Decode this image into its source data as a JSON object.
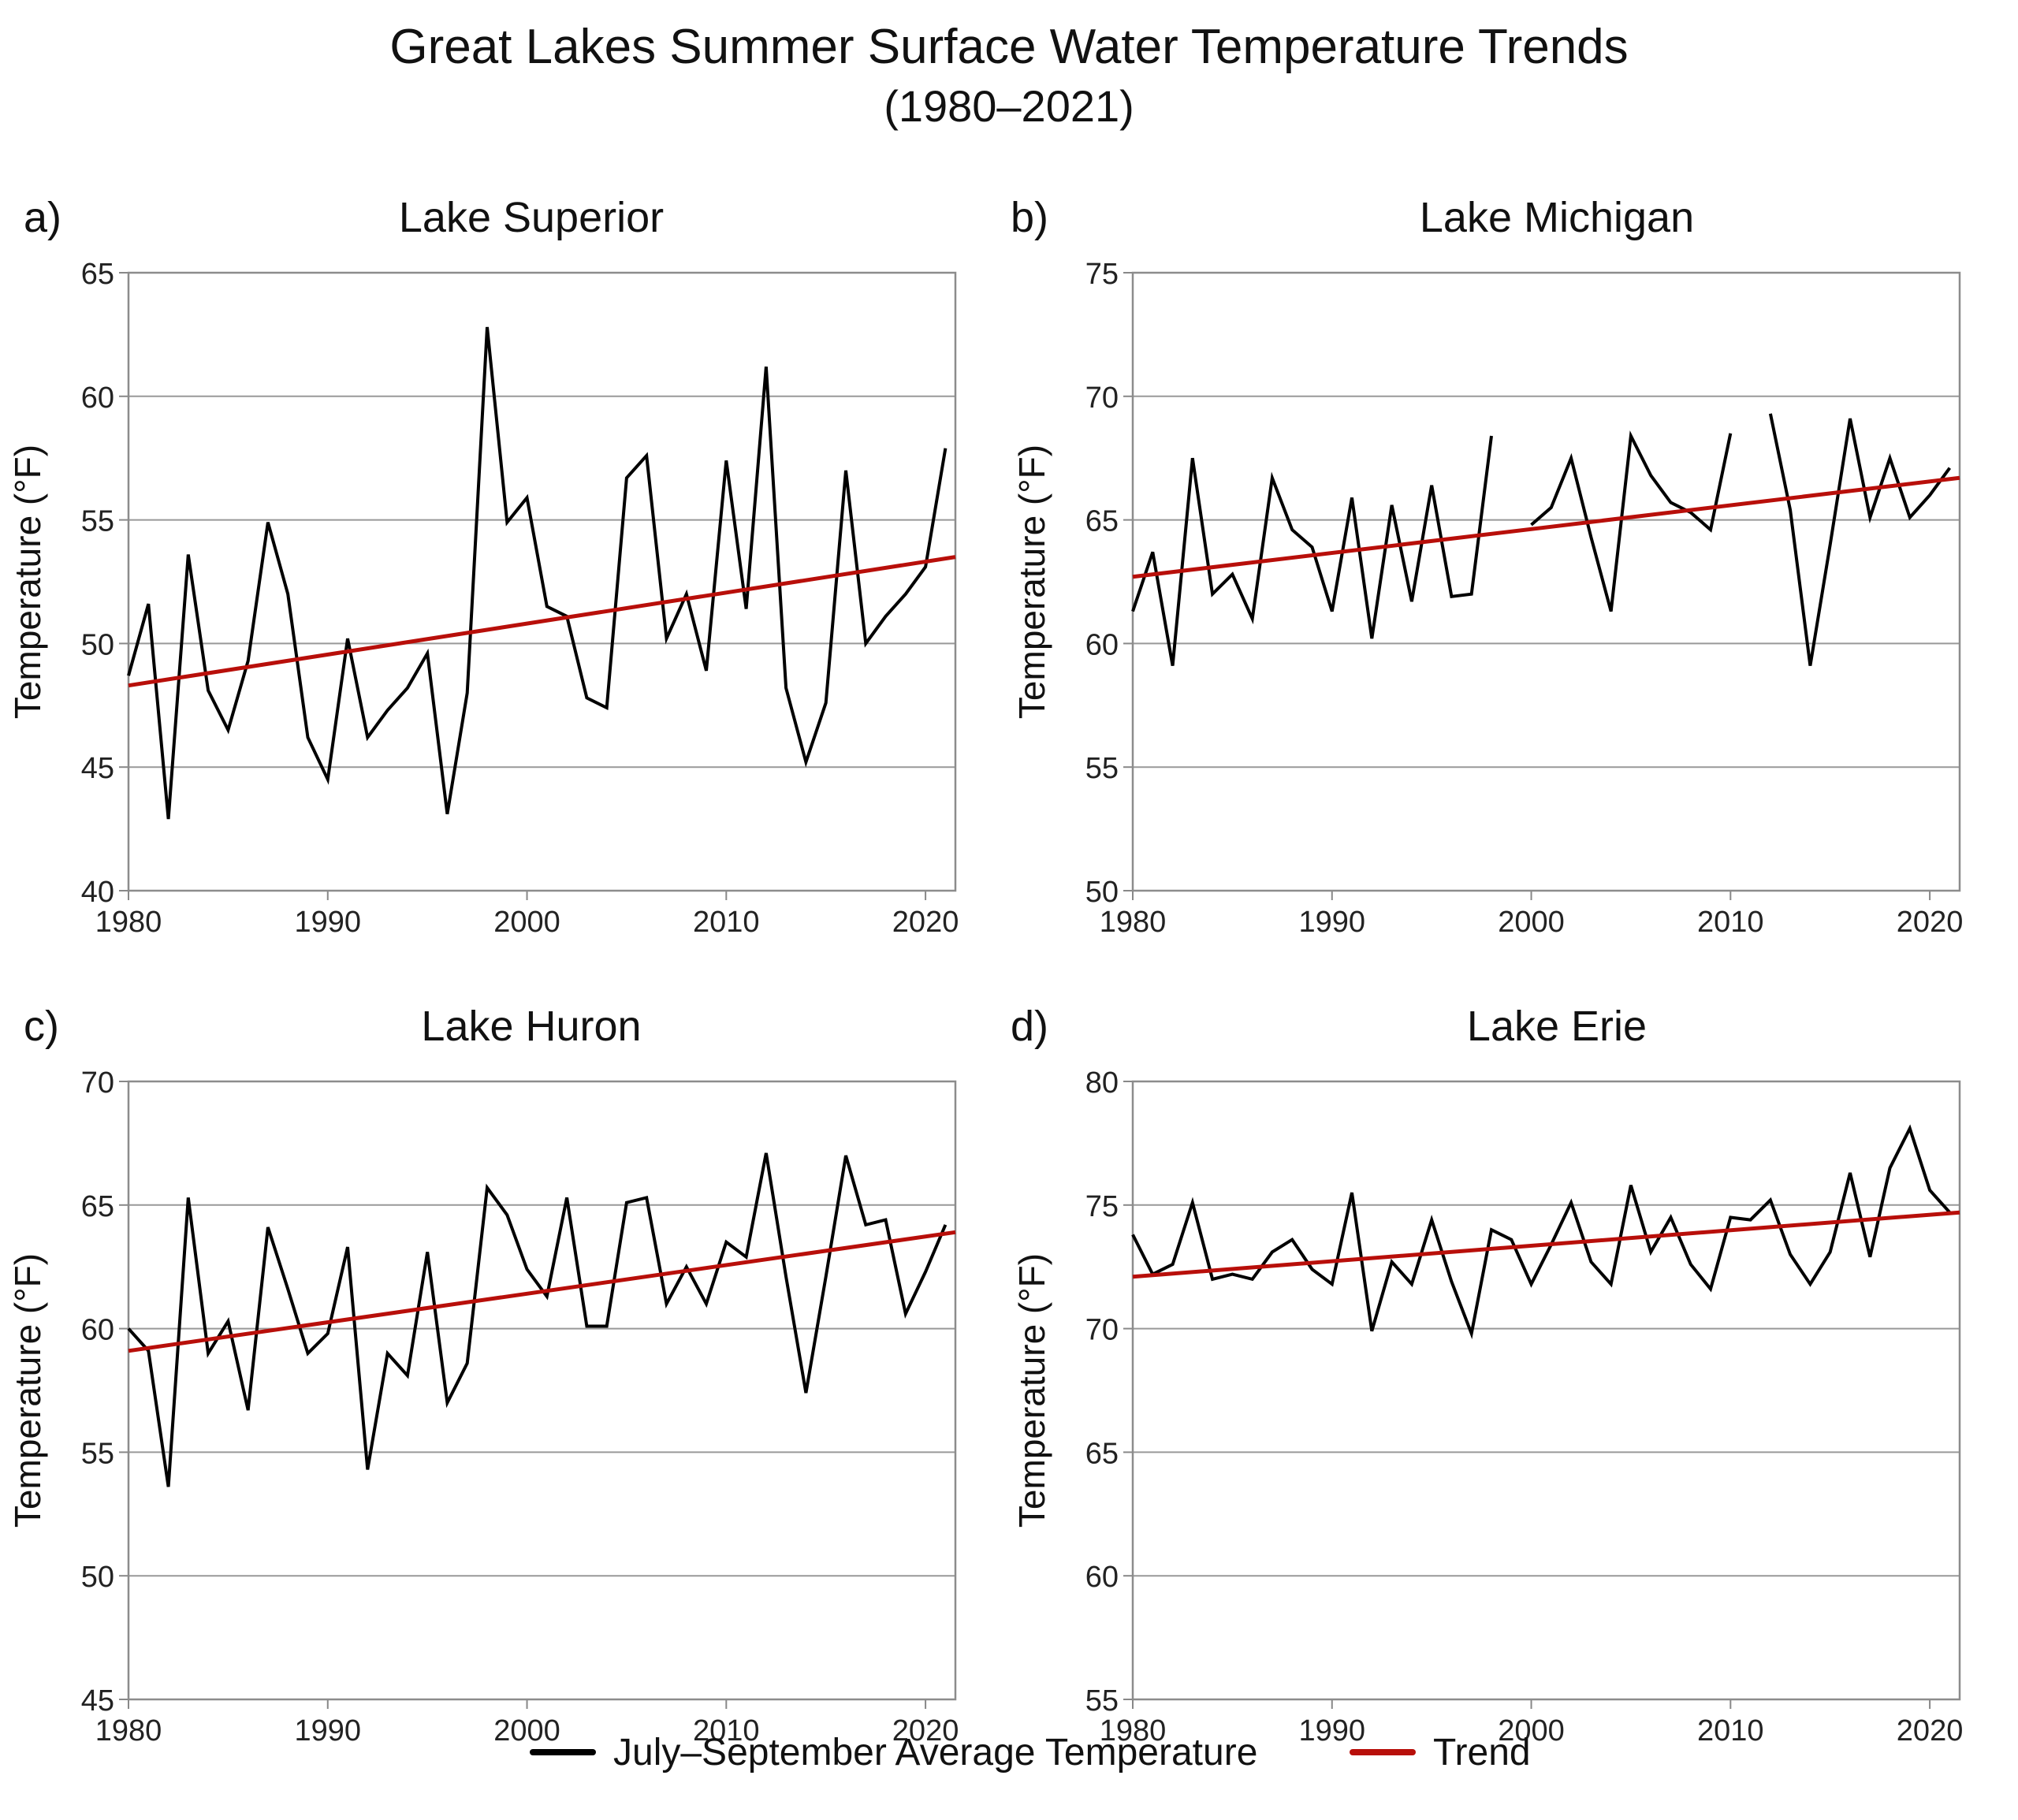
{
  "title": "Great Lakes Summer Surface Water Temperature Trends",
  "subtitle": "(1980–2021)",
  "legend": {
    "observed_label": "July–September Average Temperature",
    "trend_label": "Trend",
    "observed_color": "#000000",
    "trend_color": "#b80f0a"
  },
  "chart_data": [
    {
      "type": "line",
      "panel_label": "a)",
      "title": "Lake Superior",
      "ylabel": "Temperature (°F)",
      "xlabel": "",
      "xlim": [
        1980,
        2021.5
      ],
      "ylim": [
        40,
        65
      ],
      "xticks": [
        1980,
        1990,
        2000,
        2010,
        2020
      ],
      "yticks": [
        40,
        45,
        50,
        55,
        60,
        65
      ],
      "grid": true,
      "series": [
        {
          "name": "July–September Average Temperature",
          "x": [
            1980,
            1981,
            1982,
            1983,
            1984,
            1985,
            1986,
            1987,
            1988,
            1989,
            1990,
            1991,
            1992,
            1993,
            1994,
            1995,
            1996,
            1997,
            1998,
            1999,
            2000,
            2001,
            2002,
            2003,
            2004,
            2005,
            2006,
            2007,
            2008,
            2009,
            2010,
            2011,
            2012,
            2013,
            2014,
            2015,
            2016,
            2017,
            2018,
            2019,
            2020,
            2021
          ],
          "values": [
            48.7,
            51.6,
            42.9,
            53.6,
            48.1,
            46.5,
            49.3,
            54.9,
            52.0,
            46.2,
            44.5,
            50.2,
            46.2,
            47.3,
            48.2,
            49.6,
            43.1,
            48.0,
            62.8,
            54.9,
            55.9,
            51.5,
            51.1,
            47.8,
            47.4,
            56.7,
            57.6,
            50.2,
            52.0,
            48.9,
            57.4,
            51.4,
            61.2,
            48.2,
            45.2,
            47.6,
            57.0,
            50.0,
            51.1,
            52.0,
            53.1,
            57.9
          ]
        },
        {
          "name": "Trend",
          "x": [
            1980,
            2021.5
          ],
          "values": [
            48.3,
            53.5
          ]
        }
      ]
    },
    {
      "type": "line",
      "panel_label": "b)",
      "title": "Lake Michigan",
      "ylabel": "Temperature (°F)",
      "xlabel": "",
      "xlim": [
        1980,
        2021.5
      ],
      "ylim": [
        50,
        75
      ],
      "xticks": [
        1980,
        1990,
        2000,
        2010,
        2020
      ],
      "yticks": [
        50,
        55,
        60,
        65,
        70,
        75
      ],
      "grid": true,
      "series": [
        {
          "name": "July–September Average Temperature",
          "x": [
            1980,
            1981,
            1982,
            1983,
            1984,
            1985,
            1986,
            1987,
            1988,
            1989,
            1990,
            1991,
            1992,
            1993,
            1994,
            1995,
            1996,
            1997,
            1998,
            1999,
            2000,
            2001,
            2002,
            2003,
            2004,
            2005,
            2006,
            2007,
            2008,
            2009,
            2010,
            2011,
            2012,
            2013,
            2014,
            2015,
            2016,
            2017,
            2018,
            2019,
            2020,
            2021
          ],
          "values": [
            61.3,
            63.7,
            59.1,
            67.5,
            62.0,
            62.8,
            61.0,
            66.7,
            64.6,
            63.9,
            61.3,
            65.9,
            60.2,
            65.6,
            61.7,
            66.4,
            61.9,
            62.0,
            68.4,
            null,
            64.8,
            65.5,
            67.5,
            64.3,
            61.3,
            68.4,
            66.8,
            65.7,
            65.3,
            64.6,
            68.5,
            null,
            69.3,
            65.4,
            59.1,
            64.0,
            69.1,
            65.1,
            67.5,
            65.1,
            66.0,
            67.1
          ]
        },
        {
          "name": "Trend",
          "x": [
            1980,
            2021.5
          ],
          "values": [
            62.7,
            66.7
          ]
        }
      ]
    },
    {
      "type": "line",
      "panel_label": "c)",
      "title": "Lake Huron",
      "ylabel": "Temperature (°F)",
      "xlabel": "",
      "xlim": [
        1980,
        2021.5
      ],
      "ylim": [
        45,
        70
      ],
      "xticks": [
        1980,
        1990,
        2000,
        2010,
        2020
      ],
      "yticks": [
        45,
        50,
        55,
        60,
        65,
        70
      ],
      "grid": true,
      "series": [
        {
          "name": "July–September Average Temperature",
          "x": [
            1980,
            1981,
            1982,
            1983,
            1984,
            1985,
            1986,
            1987,
            1988,
            1989,
            1990,
            1991,
            1992,
            1993,
            1994,
            1995,
            1996,
            1997,
            1998,
            1999,
            2000,
            2001,
            2002,
            2003,
            2004,
            2005,
            2006,
            2007,
            2008,
            2009,
            2010,
            2011,
            2012,
            2013,
            2014,
            2015,
            2016,
            2017,
            2018,
            2019,
            2020,
            2021
          ],
          "values": [
            60.0,
            59.1,
            53.6,
            65.3,
            59.0,
            60.3,
            56.7,
            64.1,
            61.6,
            59.0,
            59.8,
            63.3,
            54.3,
            59.0,
            58.1,
            63.1,
            57.0,
            58.6,
            65.7,
            64.6,
            62.4,
            61.3,
            65.3,
            60.1,
            60.1,
            65.1,
            65.3,
            61.0,
            62.5,
            61.0,
            63.5,
            62.9,
            67.1,
            62.1,
            57.4,
            62.1,
            67.0,
            64.2,
            64.4,
            60.6,
            62.3,
            64.2
          ]
        },
        {
          "name": "Trend",
          "x": [
            1980,
            2021.5
          ],
          "values": [
            59.1,
            63.9
          ]
        }
      ]
    },
    {
      "type": "line",
      "panel_label": "d)",
      "title": "Lake Erie",
      "ylabel": "Temperature (°F)",
      "xlabel": "",
      "xlim": [
        1980,
        2021.5
      ],
      "ylim": [
        55,
        80
      ],
      "xticks": [
        1980,
        1990,
        2000,
        2010,
        2020
      ],
      "yticks": [
        55,
        60,
        65,
        70,
        75,
        80
      ],
      "grid": true,
      "series": [
        {
          "name": "July–September Average Temperature",
          "x": [
            1980,
            1981,
            1982,
            1983,
            1984,
            1985,
            1986,
            1987,
            1988,
            1989,
            1990,
            1991,
            1992,
            1993,
            1994,
            1995,
            1996,
            1997,
            1998,
            1999,
            2000,
            2001,
            2002,
            2003,
            2004,
            2005,
            2006,
            2007,
            2008,
            2009,
            2010,
            2011,
            2012,
            2013,
            2014,
            2015,
            2016,
            2017,
            2018,
            2019,
            2020,
            2021
          ],
          "values": [
            73.8,
            72.2,
            72.6,
            75.1,
            72.0,
            72.2,
            72.0,
            73.1,
            73.6,
            72.4,
            71.8,
            75.5,
            69.9,
            72.7,
            71.8,
            74.4,
            71.9,
            69.8,
            74.0,
            73.6,
            71.8,
            73.4,
            75.1,
            72.7,
            71.8,
            75.8,
            73.1,
            74.5,
            72.6,
            71.6,
            74.5,
            74.4,
            75.2,
            73.0,
            71.8,
            73.1,
            76.3,
            72.9,
            76.5,
            78.1,
            75.6,
            74.7
          ]
        },
        {
          "name": "Trend",
          "x": [
            1980,
            2021.5
          ],
          "values": [
            72.1,
            74.7
          ]
        }
      ]
    }
  ]
}
